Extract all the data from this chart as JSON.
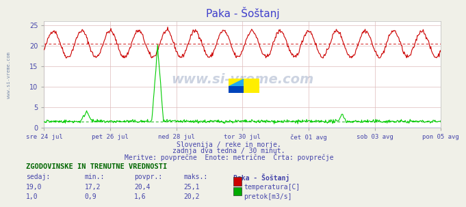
{
  "title": "Paka - Šoštanj",
  "title_color": "#4040cc",
  "bg_color": "#f0f0e8",
  "plot_bg_color": "#ffffff",
  "x_labels": [
    "sre 24 jul",
    "pet 26 jul",
    "ned 28 jul",
    "tor 30 jul",
    "čet 01 avg",
    "sob 03 avg",
    "pon 05 avg"
  ],
  "ylim": [
    0,
    26
  ],
  "yticks": [
    0,
    5,
    10,
    15,
    20,
    25
  ],
  "grid_color": "#ddbbbb",
  "avg_line_value": 20.4,
  "avg_line_flow": 1.6,
  "sub_text1": "Slovenija / reke in morje.",
  "sub_text2": "zadnja dva tedna / 30 minut.",
  "sub_text3": "Meritve: povprečne  Enote: metrične  Črta: povprečje",
  "sub_text_color": "#4444aa",
  "table_header": "ZGODOVINSKE IN TRENUTNE VREDNOSTI",
  "table_header_color": "#006600",
  "col_headers": [
    "sedaj:",
    "min.:",
    "povpr.:",
    "maks.:",
    "Paka - Šoštanj"
  ],
  "row1_vals": [
    "19,0",
    "17,2",
    "20,4",
    "25,1"
  ],
  "row1_label": "temperatura[C]",
  "row1_color": "#cc0000",
  "row2_vals": [
    "1,0",
    "0,9",
    "1,6",
    "20,2"
  ],
  "row2_label": "pretok[m3/s]",
  "row2_color": "#00aa00",
  "text_color_table": "#4444aa",
  "sidebar_text": "www.si-vreme.com",
  "sidebar_color": "#1a3a7a",
  "temp_color": "#cc0000",
  "flow_color": "#00cc00"
}
